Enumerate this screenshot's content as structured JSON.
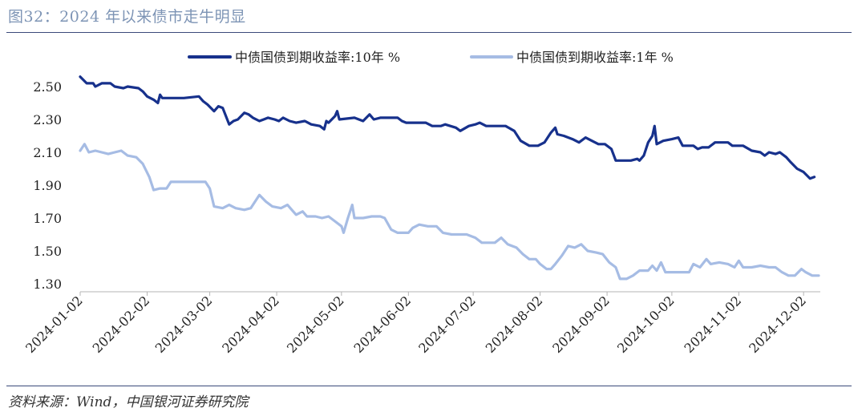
{
  "page": {
    "title": "图32：2024 年以来债市走牛明显",
    "source": "资料来源：Wind，中国银河证券研究院"
  },
  "colors": {
    "series_10y": "#17318c",
    "series_1y": "#a6bce4",
    "rule": "#3b4a7a",
    "title": "#7d94b5"
  },
  "chart_data": {
    "type": "line",
    "title": "图32：2024 年以来债市走牛明显",
    "xlabel": "",
    "ylabel": "",
    "ylim": [
      1.3,
      2.5
    ],
    "yticks": [
      "2.50",
      "2.30",
      "2.10",
      "1.90",
      "1.70",
      "1.50",
      "1.30"
    ],
    "xticks": [
      "2024-01-02",
      "2024-02-02",
      "2024-03-02",
      "2024-04-02",
      "2024-05-02",
      "2024-06-02",
      "2024-07-02",
      "2024-08-02",
      "2024-09-02",
      "2024-10-02",
      "2024-11-02",
      "2024-12-02"
    ],
    "xrange": [
      "2024-01-02",
      "2024-12-09"
    ],
    "legend_position": "top",
    "grid": false,
    "series": [
      {
        "name": "中债国债到期收益率:10年 %",
        "color": "#17318c",
        "points": [
          [
            "2024-01-02",
            2.56
          ],
          [
            "2024-01-05",
            2.52
          ],
          [
            "2024-01-08",
            2.52
          ],
          [
            "2024-01-09",
            2.5
          ],
          [
            "2024-01-12",
            2.52
          ],
          [
            "2024-01-16",
            2.52
          ],
          [
            "2024-01-18",
            2.5
          ],
          [
            "2024-01-22",
            2.49
          ],
          [
            "2024-01-24",
            2.5
          ],
          [
            "2024-01-29",
            2.49
          ],
          [
            "2024-01-31",
            2.47
          ],
          [
            "2024-02-02",
            2.44
          ],
          [
            "2024-02-05",
            2.42
          ],
          [
            "2024-02-07",
            2.4
          ],
          [
            "2024-02-08",
            2.45
          ],
          [
            "2024-02-09",
            2.43
          ],
          [
            "2024-02-19",
            2.43
          ],
          [
            "2024-02-26",
            2.44
          ],
          [
            "2024-02-28",
            2.41
          ],
          [
            "2024-03-01",
            2.39
          ],
          [
            "2024-03-04",
            2.35
          ],
          [
            "2024-03-06",
            2.38
          ],
          [
            "2024-03-08",
            2.37
          ],
          [
            "2024-03-11",
            2.27
          ],
          [
            "2024-03-13",
            2.29
          ],
          [
            "2024-03-15",
            2.3
          ],
          [
            "2024-03-18",
            2.34
          ],
          [
            "2024-03-20",
            2.33
          ],
          [
            "2024-03-22",
            2.31
          ],
          [
            "2024-03-25",
            2.29
          ],
          [
            "2024-03-27",
            2.3
          ],
          [
            "2024-03-29",
            2.31
          ],
          [
            "2024-04-01",
            2.3
          ],
          [
            "2024-04-03",
            2.29
          ],
          [
            "2024-04-05",
            2.31
          ],
          [
            "2024-04-08",
            2.29
          ],
          [
            "2024-04-11",
            2.28
          ],
          [
            "2024-04-15",
            2.29
          ],
          [
            "2024-04-18",
            2.27
          ],
          [
            "2024-04-22",
            2.26
          ],
          [
            "2024-04-24",
            2.24
          ],
          [
            "2024-04-25",
            2.29
          ],
          [
            "2024-04-26",
            2.28
          ],
          [
            "2024-04-29",
            2.32
          ],
          [
            "2024-04-30",
            2.35
          ],
          [
            "2024-05-01",
            2.3
          ],
          [
            "2024-05-08",
            2.31
          ],
          [
            "2024-05-12",
            2.29
          ],
          [
            "2024-05-15",
            2.33
          ],
          [
            "2024-05-17",
            2.3
          ],
          [
            "2024-05-20",
            2.31
          ],
          [
            "2024-05-24",
            2.31
          ],
          [
            "2024-05-28",
            2.31
          ],
          [
            "2024-05-30",
            2.29
          ],
          [
            "2024-06-01",
            2.28
          ],
          [
            "2024-06-06",
            2.28
          ],
          [
            "2024-06-10",
            2.28
          ],
          [
            "2024-06-13",
            2.26
          ],
          [
            "2024-06-17",
            2.26
          ],
          [
            "2024-06-19",
            2.27
          ],
          [
            "2024-06-24",
            2.25
          ],
          [
            "2024-06-26",
            2.23
          ],
          [
            "2024-06-30",
            2.26
          ],
          [
            "2024-07-03",
            2.27
          ],
          [
            "2024-07-05",
            2.28
          ],
          [
            "2024-07-08",
            2.26
          ],
          [
            "2024-07-12",
            2.26
          ],
          [
            "2024-07-17",
            2.26
          ],
          [
            "2024-07-21",
            2.23
          ],
          [
            "2024-07-24",
            2.17
          ],
          [
            "2024-07-28",
            2.14
          ],
          [
            "2024-08-01",
            2.14
          ],
          [
            "2024-08-04",
            2.16
          ],
          [
            "2024-08-07",
            2.22
          ],
          [
            "2024-08-09",
            2.25
          ],
          [
            "2024-08-10",
            2.21
          ],
          [
            "2024-08-13",
            2.2
          ],
          [
            "2024-08-17",
            2.18
          ],
          [
            "2024-08-20",
            2.16
          ],
          [
            "2024-08-23",
            2.19
          ],
          [
            "2024-08-26",
            2.17
          ],
          [
            "2024-08-29",
            2.15
          ],
          [
            "2024-09-01",
            2.15
          ],
          [
            "2024-09-04",
            2.12
          ],
          [
            "2024-09-06",
            2.05
          ],
          [
            "2024-09-10",
            2.05
          ],
          [
            "2024-09-13",
            2.05
          ],
          [
            "2024-09-16",
            2.06
          ],
          [
            "2024-09-17",
            2.05
          ],
          [
            "2024-09-19",
            2.08
          ],
          [
            "2024-09-21",
            2.16
          ],
          [
            "2024-09-23",
            2.2
          ],
          [
            "2024-09-24",
            2.26
          ],
          [
            "2024-09-25",
            2.15
          ],
          [
            "2024-09-28",
            2.17
          ],
          [
            "2024-10-02",
            2.18
          ],
          [
            "2024-10-05",
            2.19
          ],
          [
            "2024-10-07",
            2.14
          ],
          [
            "2024-10-12",
            2.14
          ],
          [
            "2024-10-14",
            2.12
          ],
          [
            "2024-10-16",
            2.13
          ],
          [
            "2024-10-19",
            2.13
          ],
          [
            "2024-10-22",
            2.16
          ],
          [
            "2024-10-24",
            2.16
          ],
          [
            "2024-10-28",
            2.16
          ],
          [
            "2024-10-30",
            2.14
          ],
          [
            "2024-11-04",
            2.14
          ],
          [
            "2024-11-08",
            2.11
          ],
          [
            "2024-11-12",
            2.1
          ],
          [
            "2024-11-14",
            2.08
          ],
          [
            "2024-11-16",
            2.1
          ],
          [
            "2024-11-19",
            2.09
          ],
          [
            "2024-11-21",
            2.1
          ],
          [
            "2024-11-24",
            2.07
          ],
          [
            "2024-11-26",
            2.04
          ],
          [
            "2024-11-29",
            2.0
          ],
          [
            "2024-12-02",
            1.98
          ],
          [
            "2024-12-05",
            1.94
          ],
          [
            "2024-12-07",
            1.95
          ]
        ]
      },
      {
        "name": "中债国债到期收益率:1年 %",
        "color": "#a6bce4",
        "points": [
          [
            "2024-01-02",
            2.11
          ],
          [
            "2024-01-04",
            2.15
          ],
          [
            "2024-01-06",
            2.1
          ],
          [
            "2024-01-09",
            2.11
          ],
          [
            "2024-01-12",
            2.1
          ],
          [
            "2024-01-15",
            2.09
          ],
          [
            "2024-01-18",
            2.1
          ],
          [
            "2024-01-21",
            2.11
          ],
          [
            "2024-01-24",
            2.08
          ],
          [
            "2024-01-28",
            2.07
          ],
          [
            "2024-01-31",
            2.03
          ],
          [
            "2024-02-03",
            1.95
          ],
          [
            "2024-02-05",
            1.87
          ],
          [
            "2024-02-08",
            1.88
          ],
          [
            "2024-02-11",
            1.88
          ],
          [
            "2024-02-13",
            1.92
          ],
          [
            "2024-02-20",
            1.92
          ],
          [
            "2024-02-25",
            1.92
          ],
          [
            "2024-02-29",
            1.92
          ],
          [
            "2024-03-02",
            1.88
          ],
          [
            "2024-03-04",
            1.77
          ],
          [
            "2024-03-08",
            1.76
          ],
          [
            "2024-03-11",
            1.78
          ],
          [
            "2024-03-14",
            1.76
          ],
          [
            "2024-03-18",
            1.75
          ],
          [
            "2024-03-21",
            1.76
          ],
          [
            "2024-03-25",
            1.84
          ],
          [
            "2024-03-28",
            1.8
          ],
          [
            "2024-03-31",
            1.77
          ],
          [
            "2024-04-04",
            1.76
          ],
          [
            "2024-04-07",
            1.78
          ],
          [
            "2024-04-09",
            1.75
          ],
          [
            "2024-04-11",
            1.72
          ],
          [
            "2024-04-14",
            1.74
          ],
          [
            "2024-04-16",
            1.71
          ],
          [
            "2024-04-20",
            1.71
          ],
          [
            "2024-04-23",
            1.7
          ],
          [
            "2024-04-26",
            1.71
          ],
          [
            "2024-04-29",
            1.68
          ],
          [
            "2024-05-02",
            1.65
          ],
          [
            "2024-05-03",
            1.61
          ],
          [
            "2024-05-05",
            1.7
          ],
          [
            "2024-05-07",
            1.78
          ],
          [
            "2024-05-08",
            1.7
          ],
          [
            "2024-05-12",
            1.7
          ],
          [
            "2024-05-16",
            1.71
          ],
          [
            "2024-05-20",
            1.71
          ],
          [
            "2024-05-22",
            1.7
          ],
          [
            "2024-05-25",
            1.63
          ],
          [
            "2024-05-28",
            1.61
          ],
          [
            "2024-06-02",
            1.61
          ],
          [
            "2024-06-04",
            1.64
          ],
          [
            "2024-06-07",
            1.66
          ],
          [
            "2024-06-11",
            1.65
          ],
          [
            "2024-06-15",
            1.65
          ],
          [
            "2024-06-18",
            1.61
          ],
          [
            "2024-06-22",
            1.6
          ],
          [
            "2024-06-26",
            1.6
          ],
          [
            "2024-06-29",
            1.6
          ],
          [
            "2024-07-03",
            1.58
          ],
          [
            "2024-07-06",
            1.55
          ],
          [
            "2024-07-09",
            1.55
          ],
          [
            "2024-07-12",
            1.55
          ],
          [
            "2024-07-15",
            1.58
          ],
          [
            "2024-07-18",
            1.54
          ],
          [
            "2024-07-22",
            1.52
          ],
          [
            "2024-07-25",
            1.48
          ],
          [
            "2024-07-28",
            1.45
          ],
          [
            "2024-07-31",
            1.45
          ],
          [
            "2024-08-02",
            1.42
          ],
          [
            "2024-08-05",
            1.39
          ],
          [
            "2024-08-07",
            1.39
          ],
          [
            "2024-08-09",
            1.42
          ],
          [
            "2024-08-12",
            1.47
          ],
          [
            "2024-08-15",
            1.53
          ],
          [
            "2024-08-18",
            1.52
          ],
          [
            "2024-08-21",
            1.54
          ],
          [
            "2024-08-24",
            1.5
          ],
          [
            "2024-08-28",
            1.49
          ],
          [
            "2024-08-31",
            1.48
          ],
          [
            "2024-09-03",
            1.43
          ],
          [
            "2024-09-06",
            1.4
          ],
          [
            "2024-09-08",
            1.33
          ],
          [
            "2024-09-11",
            1.33
          ],
          [
            "2024-09-14",
            1.35
          ],
          [
            "2024-09-17",
            1.38
          ],
          [
            "2024-09-21",
            1.38
          ],
          [
            "2024-09-23",
            1.41
          ],
          [
            "2024-09-25",
            1.38
          ],
          [
            "2024-09-27",
            1.43
          ],
          [
            "2024-09-29",
            1.37
          ],
          [
            "2024-10-06",
            1.37
          ],
          [
            "2024-10-10",
            1.37
          ],
          [
            "2024-10-12",
            1.42
          ],
          [
            "2024-10-15",
            1.4
          ],
          [
            "2024-10-18",
            1.45
          ],
          [
            "2024-10-20",
            1.42
          ],
          [
            "2024-10-24",
            1.43
          ],
          [
            "2024-10-28",
            1.42
          ],
          [
            "2024-10-31",
            1.4
          ],
          [
            "2024-11-02",
            1.44
          ],
          [
            "2024-11-04",
            1.4
          ],
          [
            "2024-11-08",
            1.4
          ],
          [
            "2024-11-12",
            1.41
          ],
          [
            "2024-11-16",
            1.4
          ],
          [
            "2024-11-19",
            1.4
          ],
          [
            "2024-11-22",
            1.37
          ],
          [
            "2024-11-25",
            1.35
          ],
          [
            "2024-11-28",
            1.35
          ],
          [
            "2024-12-01",
            1.39
          ],
          [
            "2024-12-03",
            1.37
          ],
          [
            "2024-12-06",
            1.35
          ],
          [
            "2024-12-09",
            1.35
          ]
        ]
      }
    ]
  }
}
